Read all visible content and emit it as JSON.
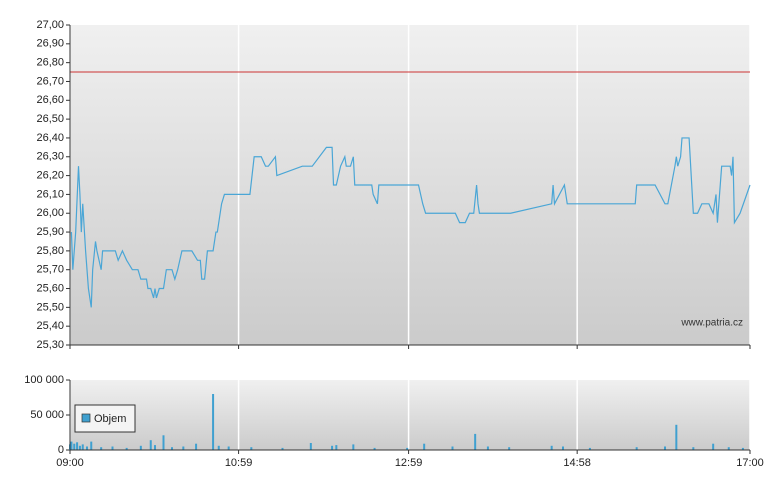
{
  "chart_data": [
    {
      "type": "line",
      "reference_line": 26.75,
      "reference_color": "#cc3333",
      "annotation": "www.patria.cz",
      "ylim": [
        25.3,
        27.0
      ],
      "yticks": [
        {
          "value": 25.3,
          "label": "25,30"
        },
        {
          "value": 25.4,
          "label": "25,40"
        },
        {
          "value": 25.5,
          "label": "25,50"
        },
        {
          "value": 25.6,
          "label": "25,60"
        },
        {
          "value": 25.7,
          "label": "25,70"
        },
        {
          "value": 25.8,
          "label": "25,80"
        },
        {
          "value": 25.9,
          "label": "25,90"
        },
        {
          "value": 26.0,
          "label": "26,00"
        },
        {
          "value": 26.1,
          "label": "26,10"
        },
        {
          "value": 26.2,
          "label": "26,20"
        },
        {
          "value": 26.3,
          "label": "26,30"
        },
        {
          "value": 26.4,
          "label": "26,40"
        },
        {
          "value": 26.5,
          "label": "26,50"
        },
        {
          "value": 26.6,
          "label": "26,60"
        },
        {
          "value": 26.7,
          "label": "26,70"
        },
        {
          "value": 26.8,
          "label": "26,80"
        },
        {
          "value": 26.9,
          "label": "26,90"
        },
        {
          "value": 27.0,
          "label": "27,00"
        }
      ],
      "xlim": [
        "09:00",
        "17:00"
      ],
      "x": [
        "09:01",
        "09:02",
        "09:04",
        "09:06",
        "09:07",
        "09:08",
        "09:09",
        "09:11",
        "09:12",
        "09:13",
        "09:15",
        "09:16",
        "09:18",
        "09:19",
        "09:22",
        "09:23",
        "09:32",
        "09:34",
        "09:37",
        "09:40",
        "09:44",
        "09:48",
        "09:50",
        "09:54",
        "09:55",
        "09:57",
        "09:59",
        "10:00",
        "10:01",
        "10:03",
        "10:06",
        "10:08",
        "10:12",
        "10:14",
        "10:16",
        "10:19",
        "10:26",
        "10:30",
        "10:32",
        "10:33",
        "10:35",
        "10:37",
        "10:41",
        "10:43",
        "10:44",
        "10:47",
        "10:49",
        "11:07",
        "11:10",
        "11:15",
        "11:18",
        "11:20",
        "11:25",
        "11:26",
        "11:44",
        "11:51",
        "12:01",
        "12:05",
        "12:06",
        "12:08",
        "12:11",
        "12:14",
        "12:15",
        "12:18",
        "12:20",
        "12:21",
        "12:33",
        "12:34",
        "12:37",
        "12:38",
        "13:06",
        "13:09",
        "13:11",
        "13:32",
        "13:35",
        "13:39",
        "13:42",
        "13:45",
        "13:47",
        "13:48",
        "13:49",
        "14:11",
        "14:40",
        "14:41",
        "14:42",
        "14:49",
        "14:51",
        "15:39",
        "15:40",
        "15:53",
        "16:00",
        "16:02",
        "16:07",
        "16:08",
        "16:09",
        "16:11",
        "16:12",
        "16:17",
        "16:20",
        "16:23",
        "16:26",
        "16:31",
        "16:34",
        "16:36",
        "16:37",
        "16:40",
        "16:46",
        "16:47",
        "16:48",
        "16:49",
        "16:53",
        "17:00"
      ],
      "series": [
        {
          "color": "#4aa6d6",
          "values": [
            25.9,
            25.7,
            25.9,
            26.25,
            26.1,
            25.9,
            26.05,
            25.8,
            25.7,
            25.6,
            25.5,
            25.7,
            25.85,
            25.8,
            25.7,
            25.8,
            25.8,
            25.75,
            25.8,
            25.75,
            25.7,
            25.7,
            25.65,
            25.65,
            25.6,
            25.6,
            25.55,
            25.6,
            25.55,
            25.6,
            25.6,
            25.7,
            25.7,
            25.65,
            25.7,
            25.8,
            25.8,
            25.75,
            25.75,
            25.65,
            25.65,
            25.8,
            25.8,
            25.9,
            25.9,
            26.05,
            26.1,
            26.1,
            26.3,
            26.3,
            26.25,
            26.25,
            26.3,
            26.2,
            26.25,
            26.25,
            26.35,
            26.35,
            26.15,
            26.15,
            26.25,
            26.3,
            26.25,
            26.25,
            26.3,
            26.15,
            26.15,
            26.1,
            26.05,
            26.15,
            26.15,
            26.05,
            26.0,
            26.0,
            25.95,
            25.95,
            26.0,
            26.0,
            26.15,
            26.05,
            26.0,
            26.0,
            26.05,
            26.15,
            26.05,
            26.15,
            26.05,
            26.05,
            26.15,
            26.15,
            26.05,
            26.05,
            26.25,
            26.3,
            26.25,
            26.3,
            26.4,
            26.4,
            26.0,
            26.0,
            26.05,
            26.05,
            26.0,
            26.1,
            25.95,
            26.25,
            26.25,
            26.2,
            26.3,
            25.95,
            26.0,
            26.15
          ]
        }
      ]
    },
    {
      "type": "bar",
      "ylim": [
        0,
        100000
      ],
      "yticks": [
        0,
        {
          "value": 50000,
          "label": "50 000"
        },
        {
          "value": 100000,
          "label": "100 000"
        }
      ],
      "xlim": [
        "09:00",
        "17:00"
      ],
      "xticks": [
        "09:00",
        "10:59",
        "12:59",
        "14:58",
        "17:00"
      ],
      "x": [
        "09:00",
        "09:01",
        "09:03",
        "09:05",
        "09:07",
        "09:09",
        "09:12",
        "09:15",
        "09:22",
        "09:30",
        "09:40",
        "09:50",
        "09:57",
        "10:00",
        "10:06",
        "10:12",
        "10:20",
        "10:29",
        "10:41",
        "10:45",
        "10:52",
        "11:08",
        "11:30",
        "11:50",
        "12:05",
        "12:08",
        "12:20",
        "12:35",
        "12:58",
        "13:10",
        "13:30",
        "13:46",
        "13:55",
        "14:10",
        "14:40",
        "14:48",
        "15:07",
        "15:40",
        "16:00",
        "16:08",
        "16:20",
        "16:34",
        "16:45",
        "16:55"
      ],
      "series": [
        {
          "name": "Objem",
          "color": "#3fa0d0",
          "values": [
            8000,
            12000,
            9000,
            11000,
            6000,
            8000,
            5000,
            12000,
            4000,
            5000,
            3000,
            6000,
            14000,
            7000,
            21000,
            4000,
            5000,
            9000,
            80000,
            6000,
            5000,
            4000,
            3000,
            10000,
            6000,
            7000,
            8000,
            3000,
            3000,
            9000,
            5000,
            23000,
            5000,
            4000,
            6000,
            5000,
            3000,
            4000,
            5000,
            36000,
            4000,
            9000,
            4000,
            3000
          ]
        }
      ]
    }
  ]
}
